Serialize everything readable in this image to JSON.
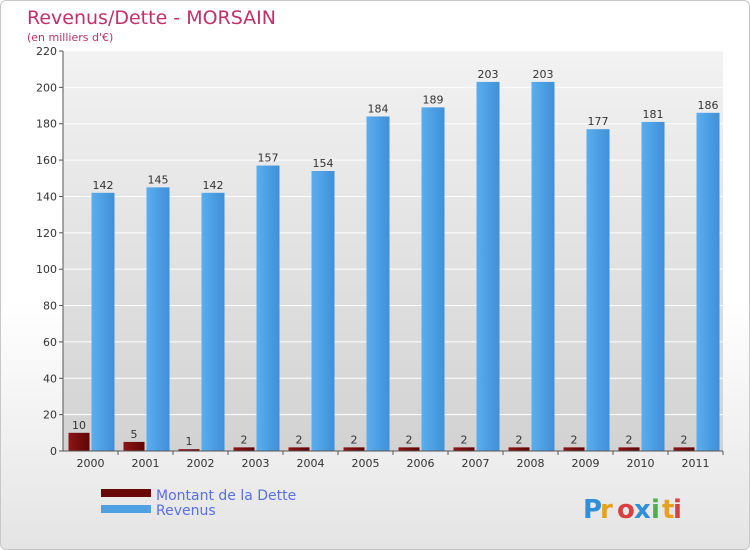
{
  "chart_data": {
    "type": "bar",
    "title": "Revenus/Dette - MORSAIN",
    "subtitle": "(en milliers d'€)",
    "categories": [
      "2000",
      "2001",
      "2002",
      "2003",
      "2004",
      "2005",
      "2006",
      "2007",
      "2008",
      "2009",
      "2010",
      "2011"
    ],
    "series": [
      {
        "name": "Montant de la Dette",
        "color": "#7a0a0a",
        "values": [
          10,
          5,
          1,
          2,
          2,
          2,
          2,
          2,
          2,
          2,
          2,
          2
        ]
      },
      {
        "name": "Revenus",
        "color": "#4ea1e3",
        "values": [
          142,
          145,
          142,
          157,
          154,
          184,
          189,
          203,
          203,
          177,
          181,
          186
        ]
      }
    ],
    "ylim": [
      0,
      220
    ],
    "yticks": [
      "0",
      "20",
      "40",
      "60",
      "80",
      "100",
      "120",
      "140",
      "160",
      "180",
      "200",
      "220"
    ],
    "grid": true,
    "legend": "bottom-left",
    "logo_text": "Proxiti"
  }
}
